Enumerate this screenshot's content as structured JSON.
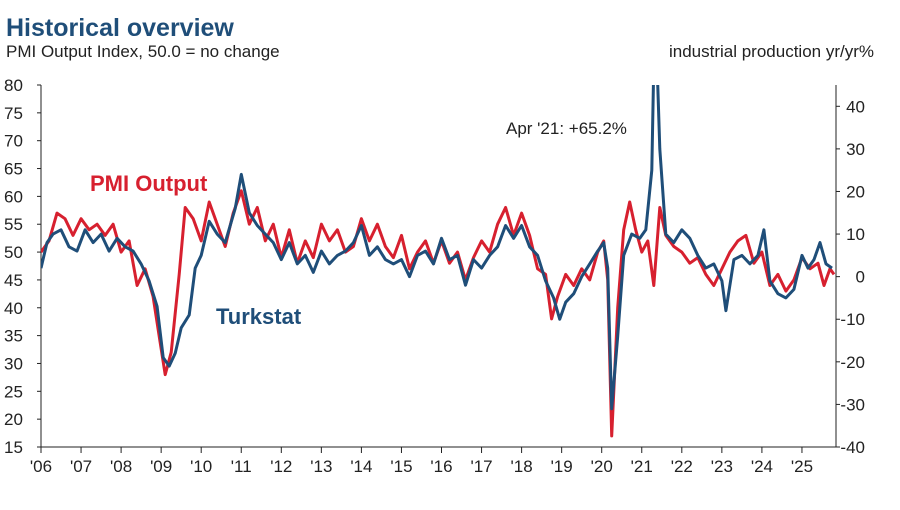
{
  "header": {
    "title": "Historical overview",
    "subtitle": "PMI Output Index, 50.0 = no change",
    "right_axis_label": "industrial production yr/yr%"
  },
  "colors": {
    "pmi": "#d7202f",
    "turkstat": "#1f4e79",
    "axis": "#222222"
  },
  "chart_data": {
    "type": "line",
    "title": "Historical overview",
    "subtitle": "PMI Output Index, 50.0 = no change",
    "ylabel_right": "industrial production yr/yr%",
    "xlim": [
      2006.0,
      2025.85
    ],
    "ylim_left": [
      15,
      80
    ],
    "ylim_right": [
      -40,
      45
    ],
    "grid": false,
    "left_ticks": [
      "80",
      "75",
      "70",
      "65",
      "60",
      "55",
      "50",
      "45",
      "40",
      "35",
      "30",
      "25",
      "20",
      "15"
    ],
    "right_ticks": [
      "40",
      "30",
      "20",
      "10",
      "0",
      "-10",
      "-20",
      "-30",
      "-40"
    ],
    "x_ticks": [
      "'06",
      "'07",
      "'08",
      "'09",
      "'10",
      "'11",
      "'12",
      "'13",
      "'14",
      "'15",
      "'16",
      "'17",
      "'18",
      "'19",
      "'20",
      "'21",
      "'22",
      "'23",
      "'24",
      "'25"
    ],
    "annotation": "Apr '21: +65.2%",
    "series": [
      {
        "name": "PMI Output",
        "axis": "left",
        "points": [
          [
            2006.0,
            50
          ],
          [
            2006.2,
            52
          ],
          [
            2006.4,
            57
          ],
          [
            2006.6,
            56
          ],
          [
            2006.8,
            53
          ],
          [
            2007.0,
            56
          ],
          [
            2007.2,
            54
          ],
          [
            2007.4,
            55
          ],
          [
            2007.6,
            53
          ],
          [
            2007.8,
            55
          ],
          [
            2008.0,
            50
          ],
          [
            2008.2,
            52
          ],
          [
            2008.4,
            44
          ],
          [
            2008.6,
            47
          ],
          [
            2008.8,
            42
          ],
          [
            2008.95,
            35
          ],
          [
            2009.1,
            28
          ],
          [
            2009.25,
            32
          ],
          [
            2009.45,
            46
          ],
          [
            2009.6,
            58
          ],
          [
            2009.8,
            56
          ],
          [
            2010.0,
            52
          ],
          [
            2010.2,
            59
          ],
          [
            2010.4,
            55
          ],
          [
            2010.6,
            51
          ],
          [
            2010.8,
            57
          ],
          [
            2011.0,
            61
          ],
          [
            2011.2,
            55
          ],
          [
            2011.4,
            58
          ],
          [
            2011.6,
            52
          ],
          [
            2011.8,
            55
          ],
          [
            2012.0,
            49
          ],
          [
            2012.2,
            54
          ],
          [
            2012.4,
            48
          ],
          [
            2012.6,
            52
          ],
          [
            2012.8,
            49
          ],
          [
            2013.0,
            55
          ],
          [
            2013.2,
            52
          ],
          [
            2013.4,
            54
          ],
          [
            2013.6,
            50
          ],
          [
            2013.8,
            51
          ],
          [
            2014.0,
            56
          ],
          [
            2014.2,
            52
          ],
          [
            2014.4,
            55
          ],
          [
            2014.6,
            51
          ],
          [
            2014.8,
            49
          ],
          [
            2015.0,
            53
          ],
          [
            2015.2,
            47
          ],
          [
            2015.4,
            50
          ],
          [
            2015.6,
            52
          ],
          [
            2015.8,
            48
          ],
          [
            2016.0,
            52
          ],
          [
            2016.2,
            48
          ],
          [
            2016.4,
            50
          ],
          [
            2016.6,
            45
          ],
          [
            2016.8,
            49
          ],
          [
            2017.0,
            52
          ],
          [
            2017.2,
            50
          ],
          [
            2017.4,
            55
          ],
          [
            2017.6,
            58
          ],
          [
            2017.8,
            53
          ],
          [
            2018.0,
            57
          ],
          [
            2018.2,
            53
          ],
          [
            2018.4,
            47
          ],
          [
            2018.6,
            46
          ],
          [
            2018.75,
            38
          ],
          [
            2018.9,
            42
          ],
          [
            2019.1,
            46
          ],
          [
            2019.3,
            44
          ],
          [
            2019.5,
            47
          ],
          [
            2019.7,
            45
          ],
          [
            2019.9,
            50
          ],
          [
            2020.05,
            52
          ],
          [
            2020.15,
            45
          ],
          [
            2020.25,
            17
          ],
          [
            2020.4,
            40
          ],
          [
            2020.55,
            54
          ],
          [
            2020.7,
            59
          ],
          [
            2020.85,
            54
          ],
          [
            2021.0,
            50
          ],
          [
            2021.15,
            52
          ],
          [
            2021.3,
            44
          ],
          [
            2021.45,
            58
          ],
          [
            2021.6,
            53
          ],
          [
            2021.8,
            51
          ],
          [
            2022.0,
            50
          ],
          [
            2022.2,
            48
          ],
          [
            2022.4,
            49
          ],
          [
            2022.6,
            46
          ],
          [
            2022.8,
            44
          ],
          [
            2023.0,
            47
          ],
          [
            2023.2,
            50
          ],
          [
            2023.4,
            52
          ],
          [
            2023.6,
            53
          ],
          [
            2023.8,
            48
          ],
          [
            2024.0,
            50
          ],
          [
            2024.2,
            44
          ],
          [
            2024.4,
            46
          ],
          [
            2024.6,
            43
          ],
          [
            2024.8,
            45
          ],
          [
            2025.0,
            49
          ],
          [
            2025.2,
            47
          ],
          [
            2025.4,
            48
          ],
          [
            2025.55,
            44
          ],
          [
            2025.7,
            47
          ],
          [
            2025.8,
            46
          ]
        ]
      },
      {
        "name": "Turkstat",
        "axis": "right",
        "points": [
          [
            2006.0,
            2
          ],
          [
            2006.15,
            8
          ],
          [
            2006.3,
            10
          ],
          [
            2006.5,
            11
          ],
          [
            2006.7,
            7
          ],
          [
            2006.9,
            6
          ],
          [
            2007.1,
            11
          ],
          [
            2007.3,
            8
          ],
          [
            2007.5,
            10
          ],
          [
            2007.7,
            6
          ],
          [
            2007.9,
            9
          ],
          [
            2008.1,
            7
          ],
          [
            2008.3,
            6
          ],
          [
            2008.5,
            3
          ],
          [
            2008.7,
            -1
          ],
          [
            2008.9,
            -7
          ],
          [
            2009.05,
            -19
          ],
          [
            2009.2,
            -21
          ],
          [
            2009.35,
            -18
          ],
          [
            2009.5,
            -12
          ],
          [
            2009.7,
            -9
          ],
          [
            2009.85,
            2
          ],
          [
            2010.0,
            5
          ],
          [
            2010.2,
            13
          ],
          [
            2010.4,
            10
          ],
          [
            2010.6,
            8
          ],
          [
            2010.85,
            16
          ],
          [
            2011.0,
            24
          ],
          [
            2011.2,
            15
          ],
          [
            2011.4,
            12
          ],
          [
            2011.6,
            10
          ],
          [
            2011.8,
            8
          ],
          [
            2012.0,
            4
          ],
          [
            2012.2,
            8
          ],
          [
            2012.4,
            3
          ],
          [
            2012.6,
            5
          ],
          [
            2012.8,
            1
          ],
          [
            2013.0,
            6
          ],
          [
            2013.2,
            3
          ],
          [
            2013.4,
            5
          ],
          [
            2013.6,
            6
          ],
          [
            2013.8,
            8
          ],
          [
            2014.0,
            12
          ],
          [
            2014.2,
            5
          ],
          [
            2014.4,
            7
          ],
          [
            2014.6,
            4
          ],
          [
            2014.8,
            3
          ],
          [
            2015.0,
            4
          ],
          [
            2015.2,
            0
          ],
          [
            2015.4,
            5
          ],
          [
            2015.6,
            6
          ],
          [
            2015.8,
            3
          ],
          [
            2016.0,
            9
          ],
          [
            2016.2,
            4
          ],
          [
            2016.4,
            5
          ],
          [
            2016.6,
            -2
          ],
          [
            2016.8,
            4
          ],
          [
            2017.0,
            2
          ],
          [
            2017.2,
            5
          ],
          [
            2017.4,
            7
          ],
          [
            2017.6,
            12
          ],
          [
            2017.8,
            9
          ],
          [
            2018.0,
            12
          ],
          [
            2018.2,
            7
          ],
          [
            2018.4,
            5
          ],
          [
            2018.6,
            -1
          ],
          [
            2018.8,
            -5
          ],
          [
            2018.95,
            -10
          ],
          [
            2019.1,
            -6
          ],
          [
            2019.3,
            -4
          ],
          [
            2019.5,
            0
          ],
          [
            2019.7,
            3
          ],
          [
            2019.9,
            6
          ],
          [
            2020.05,
            8
          ],
          [
            2020.15,
            2
          ],
          [
            2020.25,
            -31
          ],
          [
            2020.4,
            -14
          ],
          [
            2020.55,
            5
          ],
          [
            2020.75,
            10
          ],
          [
            2020.95,
            9
          ],
          [
            2021.1,
            11
          ],
          [
            2021.25,
            25
          ],
          [
            2021.33,
            65
          ],
          [
            2021.45,
            30
          ],
          [
            2021.6,
            10
          ],
          [
            2021.8,
            8
          ],
          [
            2022.0,
            11
          ],
          [
            2022.2,
            9
          ],
          [
            2022.4,
            5
          ],
          [
            2022.6,
            2
          ],
          [
            2022.8,
            3
          ],
          [
            2023.0,
            -1
          ],
          [
            2023.1,
            -8
          ],
          [
            2023.3,
            4
          ],
          [
            2023.5,
            5
          ],
          [
            2023.7,
            3
          ],
          [
            2023.9,
            5
          ],
          [
            2024.05,
            11
          ],
          [
            2024.2,
            -1
          ],
          [
            2024.4,
            -4
          ],
          [
            2024.6,
            -5
          ],
          [
            2024.8,
            -3
          ],
          [
            2025.0,
            5
          ],
          [
            2025.15,
            2
          ],
          [
            2025.3,
            4
          ],
          [
            2025.45,
            8
          ],
          [
            2025.6,
            3
          ],
          [
            2025.75,
            2
          ]
        ]
      }
    ],
    "series_labels": [
      "PMI Output",
      "Turkstat"
    ]
  }
}
